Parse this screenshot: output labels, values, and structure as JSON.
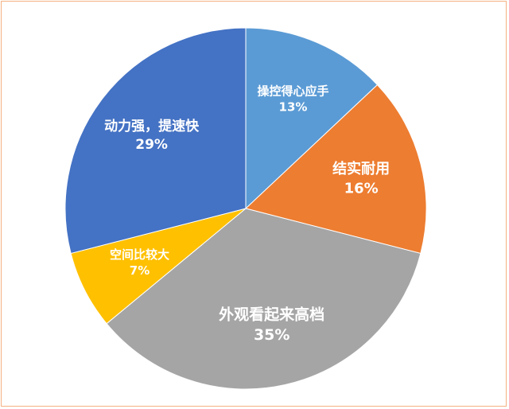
{
  "chart_data": {
    "type": "pie",
    "categories": [
      "操控得心应手",
      "结实耐用",
      "外观看起来高档",
      "空间比较大",
      "动力强，提速快"
    ],
    "values": [
      13,
      16,
      35,
      7,
      29
    ],
    "value_labels": [
      "13%",
      "16%",
      "35%",
      "7%",
      "29%"
    ],
    "colors": [
      "#5b9bd5",
      "#ed7d31",
      "#a5a5a5",
      "#ffc000",
      "#4472c4"
    ]
  }
}
